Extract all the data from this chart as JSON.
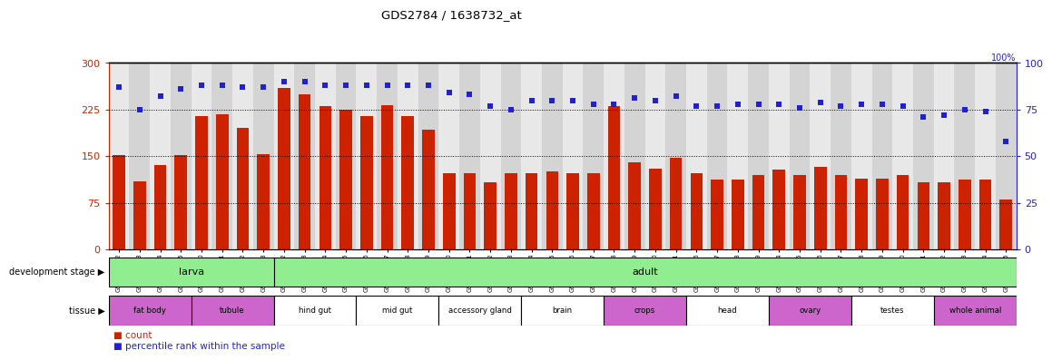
{
  "title": "GDS2784 / 1638732_at",
  "samples": [
    "GSM188092",
    "GSM188093",
    "GSM188094",
    "GSM188095",
    "GSM188100",
    "GSM188101",
    "GSM188102",
    "GSM188103",
    "GSM188072",
    "GSM188073",
    "GSM188074",
    "GSM188075",
    "GSM188076",
    "GSM188077",
    "GSM188078",
    "GSM188079",
    "GSM188080",
    "GSM188081",
    "GSM188082",
    "GSM188083",
    "GSM188084",
    "GSM188085",
    "GSM188086",
    "GSM188087",
    "GSM188088",
    "GSM188089",
    "GSM188090",
    "GSM188091",
    "GSM188096",
    "GSM188097",
    "GSM188098",
    "GSM188099",
    "GSM188104",
    "GSM188105",
    "GSM188106",
    "GSM188107",
    "GSM188108",
    "GSM188109",
    "GSM188110",
    "GSM188111",
    "GSM188112",
    "GSM188113",
    "GSM188114",
    "GSM188115"
  ],
  "counts": [
    152,
    110,
    135,
    152,
    215,
    218,
    195,
    153,
    260,
    250,
    230,
    225,
    215,
    232,
    215,
    192,
    122,
    123,
    108,
    122,
    122,
    125,
    122,
    122,
    230,
    140,
    130,
    148,
    122,
    112,
    112,
    120,
    128,
    120,
    132,
    120,
    113,
    113,
    120,
    108,
    108,
    112,
    112,
    80
  ],
  "percentiles": [
    87,
    75,
    82,
    86,
    88,
    88,
    87,
    87,
    90,
    90,
    88,
    88,
    88,
    88,
    88,
    88,
    84,
    83,
    77,
    75,
    80,
    80,
    80,
    78,
    78,
    81,
    80,
    82,
    77,
    77,
    78,
    78,
    78,
    76,
    79,
    77,
    78,
    78,
    77,
    71,
    72,
    75,
    74,
    58
  ],
  "dev_stages": [
    {
      "label": "larva",
      "start": 0,
      "end": 8,
      "color": "#90ee90"
    },
    {
      "label": "adult",
      "start": 8,
      "end": 44,
      "color": "#90ee90"
    }
  ],
  "tissues": [
    {
      "label": "fat body",
      "start": 0,
      "end": 4,
      "color": "#cc66cc"
    },
    {
      "label": "tubule",
      "start": 4,
      "end": 8,
      "color": "#cc66cc"
    },
    {
      "label": "hind gut",
      "start": 8,
      "end": 12,
      "color": "#ffffff"
    },
    {
      "label": "mid gut",
      "start": 12,
      "end": 16,
      "color": "#ffffff"
    },
    {
      "label": "accessory gland",
      "start": 16,
      "end": 20,
      "color": "#ffffff"
    },
    {
      "label": "brain",
      "start": 20,
      "end": 24,
      "color": "#ffffff"
    },
    {
      "label": "crops",
      "start": 24,
      "end": 28,
      "color": "#cc66cc"
    },
    {
      "label": "head",
      "start": 28,
      "end": 32,
      "color": "#ffffff"
    },
    {
      "label": "ovary",
      "start": 32,
      "end": 36,
      "color": "#cc66cc"
    },
    {
      "label": "testes",
      "start": 36,
      "end": 40,
      "color": "#ffffff"
    },
    {
      "label": "whole animal",
      "start": 40,
      "end": 44,
      "color": "#cc66cc"
    }
  ],
  "bar_color": "#cc2200",
  "dot_color": "#2222cc",
  "ylim_left": [
    0,
    300
  ],
  "ylim_right": [
    0,
    100
  ],
  "yticks_left": [
    0,
    75,
    150,
    225,
    300
  ],
  "yticks_right": [
    0,
    25,
    50,
    75,
    100
  ],
  "hlines": [
    75,
    150,
    225
  ],
  "axis_color_left": "#cc2200",
  "axis_color_right": "#2222cc",
  "col_colors": [
    "#e8e8e8",
    "#d4d4d4"
  ]
}
